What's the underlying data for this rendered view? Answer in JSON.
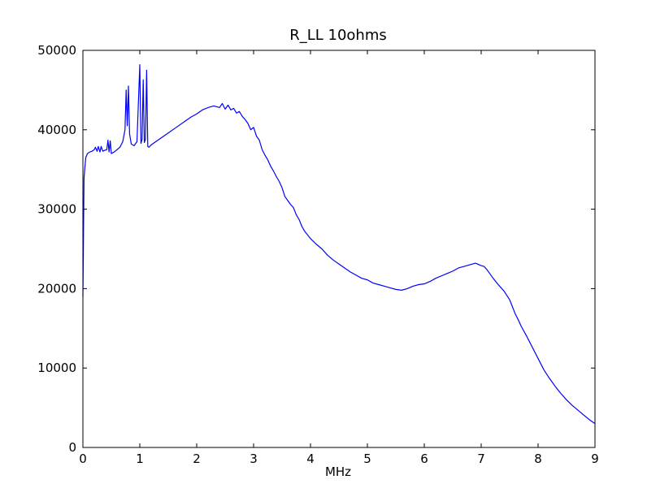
{
  "chart_data": {
    "type": "line",
    "title": "R_LL 10ohms",
    "xlabel": "MHz",
    "ylabel": "",
    "xlim": [
      0,
      9
    ],
    "ylim": [
      0,
      50000
    ],
    "xticks": [
      "0",
      "1",
      "2",
      "3",
      "4",
      "5",
      "6",
      "7",
      "8",
      "9"
    ],
    "yticks": [
      "0",
      "10000",
      "20000",
      "30000",
      "40000",
      "50000"
    ],
    "grid": false,
    "legend": "none",
    "series": [
      {
        "color": "#0000ff",
        "x": [
          0.0,
          0.02,
          0.05,
          0.08,
          0.12,
          0.16,
          0.2,
          0.22,
          0.25,
          0.27,
          0.3,
          0.32,
          0.35,
          0.38,
          0.42,
          0.44,
          0.46,
          0.48,
          0.5,
          0.52,
          0.55,
          0.6,
          0.65,
          0.7,
          0.74,
          0.76,
          0.78,
          0.8,
          0.82,
          0.85,
          0.9,
          0.95,
          1.0,
          1.02,
          1.04,
          1.06,
          1.08,
          1.1,
          1.12,
          1.14,
          1.16,
          1.2,
          1.3,
          1.4,
          1.5,
          1.6,
          1.7,
          1.8,
          1.9,
          2.0,
          2.1,
          2.2,
          2.3,
          2.4,
          2.45,
          2.5,
          2.55,
          2.6,
          2.65,
          2.7,
          2.75,
          2.8,
          2.85,
          2.9,
          2.95,
          3.0,
          3.05,
          3.1,
          3.15,
          3.2,
          3.25,
          3.3,
          3.35,
          3.4,
          3.45,
          3.5,
          3.55,
          3.6,
          3.65,
          3.7,
          3.75,
          3.8,
          3.85,
          3.9,
          4.0,
          4.1,
          4.2,
          4.3,
          4.4,
          4.5,
          4.6,
          4.7,
          4.8,
          4.9,
          5.0,
          5.1,
          5.2,
          5.3,
          5.4,
          5.5,
          5.6,
          5.7,
          5.8,
          5.9,
          6.0,
          6.1,
          6.2,
          6.3,
          6.4,
          6.5,
          6.6,
          6.7,
          6.8,
          6.9,
          7.0,
          7.05,
          7.1,
          7.15,
          7.2,
          7.3,
          7.4,
          7.5,
          7.55,
          7.6,
          7.65,
          7.7,
          7.8,
          7.9,
          8.0,
          8.1,
          8.2,
          8.3,
          8.4,
          8.5,
          8.6,
          8.7,
          8.8,
          8.9,
          9.0
        ],
        "y": [
          19000,
          34000,
          36500,
          37000,
          37200,
          37300,
          37500,
          37800,
          37300,
          37900,
          37200,
          37900,
          37300,
          37400,
          37500,
          38700,
          37200,
          38600,
          37000,
          37100,
          37200,
          37500,
          37800,
          38500,
          40000,
          45000,
          40500,
          45500,
          39500,
          38200,
          38000,
          38500,
          48200,
          38300,
          38800,
          46300,
          38400,
          38800,
          47500,
          37900,
          37800,
          38100,
          38600,
          39100,
          39600,
          40100,
          40600,
          41100,
          41600,
          42000,
          42500,
          42800,
          43000,
          42800,
          43300,
          42600,
          43100,
          42500,
          42700,
          42100,
          42300,
          41700,
          41300,
          40800,
          40000,
          40300,
          39200,
          38700,
          37500,
          36800,
          36200,
          35400,
          34800,
          34100,
          33500,
          32700,
          31600,
          31100,
          30600,
          30200,
          29300,
          28700,
          27800,
          27200,
          26300,
          25600,
          25000,
          24200,
          23600,
          23100,
          22600,
          22100,
          21700,
          21300,
          21100,
          20700,
          20500,
          20300,
          20100,
          19900,
          19800,
          20000,
          20300,
          20500,
          20600,
          20900,
          21300,
          21600,
          21900,
          22200,
          22600,
          22800,
          23000,
          23200,
          22900,
          22800,
          22400,
          21900,
          21400,
          20500,
          19700,
          18600,
          17700,
          16800,
          16100,
          15300,
          14000,
          12600,
          11200,
          9800,
          8700,
          7700,
          6800,
          6000,
          5300,
          4700,
          4100,
          3500,
          3000
        ]
      }
    ]
  }
}
